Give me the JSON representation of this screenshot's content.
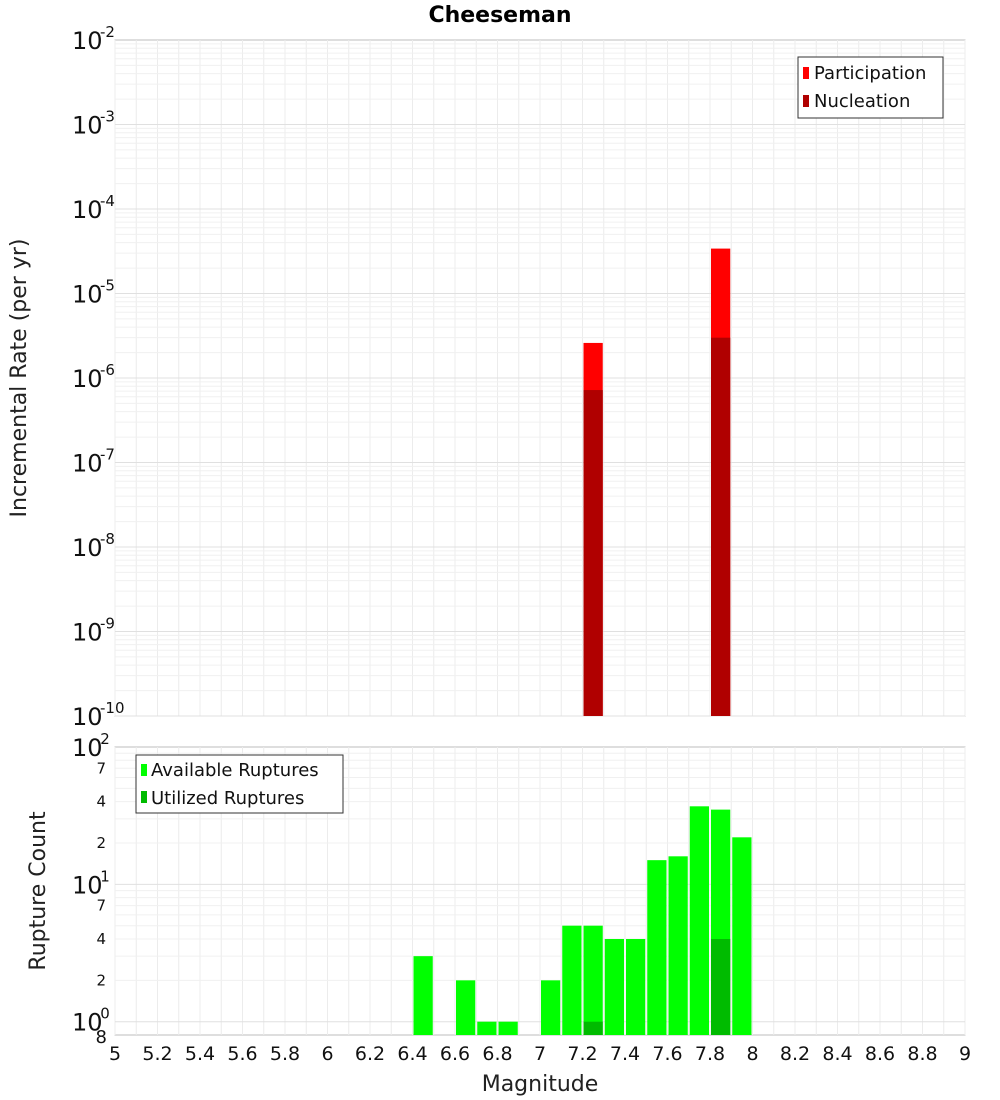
{
  "chart_data": [
    {
      "type": "bar",
      "title": "Cheeseman",
      "ylabel": "Incremental Rate (per yr)",
      "xlabel": "",
      "scale_y": "log",
      "xlim": [
        5,
        9
      ],
      "ylim": [
        1e-10,
        0.01
      ],
      "y_ticks": [
        -10,
        -9,
        -8,
        -7,
        -6,
        -5,
        -4,
        -3,
        -2
      ],
      "bar_width": 0.1,
      "legend": {
        "placement": "top-right"
      },
      "series": [
        {
          "name": "Participation",
          "color": "#ff0000",
          "points": [
            {
              "x": 7.25,
              "y": 2.6e-06
            },
            {
              "x": 7.85,
              "y": 3.4e-05
            }
          ]
        },
        {
          "name": "Nucleation",
          "color": "#b00000",
          "points": [
            {
              "x": 7.25,
              "y": 7.2e-07
            },
            {
              "x": 7.85,
              "y": 3e-06
            }
          ]
        }
      ]
    },
    {
      "type": "bar",
      "ylabel": "Rupture Count",
      "xlabel": "Magnitude",
      "scale_y": "log",
      "xlim": [
        5,
        9
      ],
      "ylim": [
        0.8,
        100
      ],
      "x_ticks": [
        "5",
        "5.2",
        "5.4",
        "5.6",
        "5.8",
        "6",
        "6.2",
        "6.4",
        "6.6",
        "6.8",
        "7",
        "7.2",
        "7.4",
        "7.6",
        "7.8",
        "8",
        "8.2",
        "8.4",
        "8.6",
        "8.8",
        "9"
      ],
      "y_major_ticks": [
        0,
        1,
        2
      ],
      "y_minor_ticks": [
        {
          "value": 2,
          "label": "2"
        },
        {
          "value": 4,
          "label": "4"
        },
        {
          "value": 7,
          "label": "7"
        },
        {
          "value": 20,
          "label": "2"
        },
        {
          "value": 40,
          "label": "4"
        },
        {
          "value": 70,
          "label": "7"
        }
      ],
      "y_bottom_label": "8",
      "bar_width": 0.1,
      "legend": {
        "placement": "top-left"
      },
      "series": [
        {
          "name": "Available Ruptures",
          "color": "#00ff00",
          "points": [
            {
              "x": 6.45,
              "y": 3
            },
            {
              "x": 6.65,
              "y": 2
            },
            {
              "x": 6.75,
              "y": 1
            },
            {
              "x": 6.85,
              "y": 1
            },
            {
              "x": 7.05,
              "y": 2
            },
            {
              "x": 7.15,
              "y": 5
            },
            {
              "x": 7.25,
              "y": 5
            },
            {
              "x": 7.35,
              "y": 4
            },
            {
              "x": 7.45,
              "y": 4
            },
            {
              "x": 7.55,
              "y": 15
            },
            {
              "x": 7.65,
              "y": 16
            },
            {
              "x": 7.75,
              "y": 37
            },
            {
              "x": 7.85,
              "y": 35
            },
            {
              "x": 7.95,
              "y": 22
            }
          ]
        },
        {
          "name": "Utilized Ruptures",
          "color": "#00bb00",
          "points": [
            {
              "x": 7.25,
              "y": 1
            },
            {
              "x": 7.85,
              "y": 4
            }
          ]
        }
      ]
    }
  ],
  "icons": [
    "legend-swatch-icon"
  ]
}
